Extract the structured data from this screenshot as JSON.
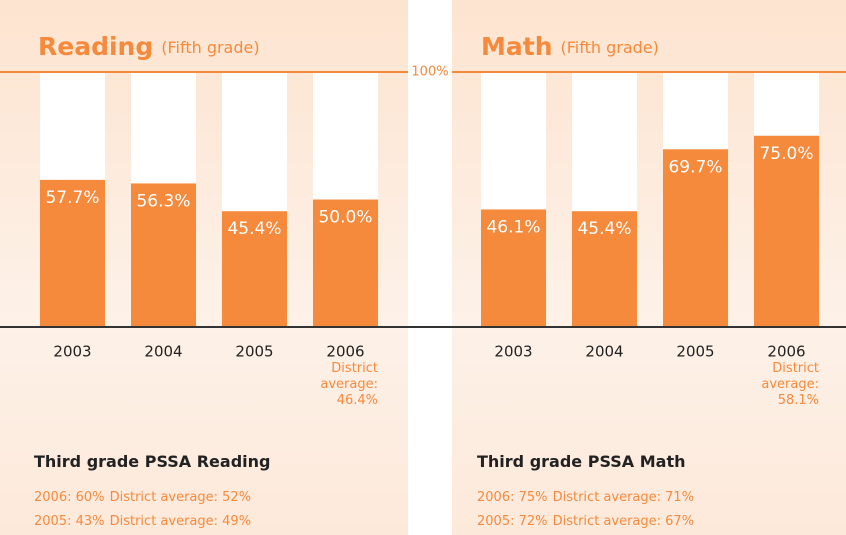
{
  "chart_data": [
    {
      "type": "bar",
      "title": "Reading",
      "subtitle": "(Fifth grade)",
      "categories": [
        "2003",
        "2004",
        "2005",
        "2006"
      ],
      "values": [
        57.7,
        56.3,
        45.4,
        50.0
      ],
      "value_labels": [
        "57.7%",
        "56.3%",
        "45.4%",
        "50.0%"
      ],
      "color": "#f58a3c",
      "ylim": [
        0,
        100
      ],
      "yticks": [
        {
          "value": 100,
          "label": "100%"
        }
      ],
      "annotation": "District average: 46.4%",
      "notes_title": "Third grade PSSA Reading",
      "notes": [
        {
          "text": "2006: 60%",
          "district": "District average: 52%"
        },
        {
          "text": "2005: 43%",
          "district": "District average: 49%"
        }
      ]
    },
    {
      "type": "bar",
      "title": "Math",
      "subtitle": "(Fifth grade)",
      "categories": [
        "2003",
        "2004",
        "2005",
        "2006"
      ],
      "values": [
        46.1,
        45.4,
        69.7,
        75.0
      ],
      "value_labels": [
        "46.1%",
        "45.4%",
        "69.7%",
        "75.0%"
      ],
      "color": "#f58a3c",
      "ylim": [
        0,
        100
      ],
      "annotation": "District average: 58.1%",
      "notes_title": "Third grade PSSA Math",
      "notes": [
        {
          "text": "2006: 75%",
          "district": "District average: 71%"
        },
        {
          "text": "2005: 72%",
          "district": "District average: 67%"
        }
      ]
    }
  ]
}
